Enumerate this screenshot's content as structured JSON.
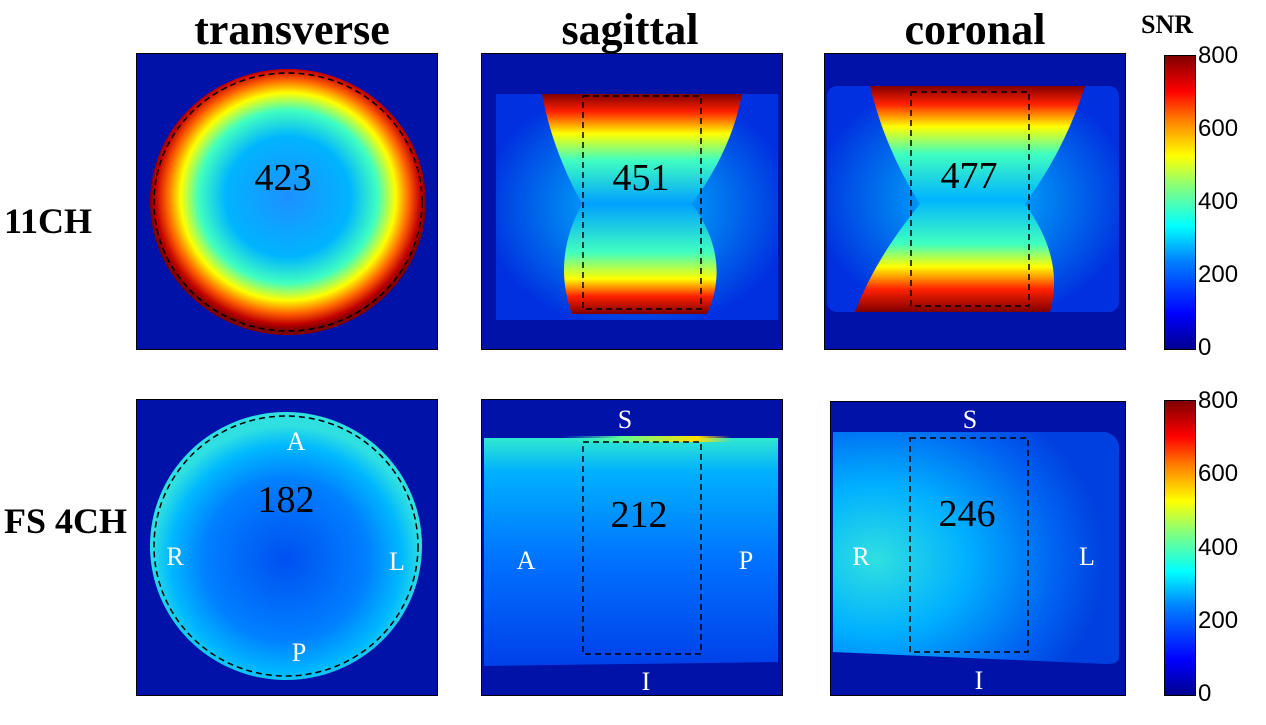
{
  "column_titles": [
    "transverse",
    "sagittal",
    "coronal"
  ],
  "row_labels": [
    "11CH",
    "FS 4CH"
  ],
  "colorbar": {
    "label": "SNR",
    "ticks": [
      "800",
      "600",
      "400",
      "200",
      "0"
    ],
    "range": [
      0,
      800
    ],
    "colormap": "jet"
  },
  "panels": {
    "row1": {
      "transverse": {
        "mean_snr": "423"
      },
      "sagittal": {
        "mean_snr": "451"
      },
      "coronal": {
        "mean_snr": "477"
      }
    },
    "row2": {
      "transverse": {
        "mean_snr": "182",
        "orientation": {
          "top": "A",
          "left": "R",
          "right": "L",
          "bottom": "P"
        }
      },
      "sagittal": {
        "mean_snr": "212",
        "orientation": {
          "top": "S",
          "left": "A",
          "right": "P",
          "bottom": "I"
        }
      },
      "coronal": {
        "mean_snr": "246",
        "orientation": {
          "top": "S",
          "left": "R",
          "right": "L",
          "bottom": "I"
        }
      }
    }
  },
  "colors": {
    "background_blue": "#0012a8",
    "high_red": "#8b0000",
    "roi_line": "#000000"
  }
}
